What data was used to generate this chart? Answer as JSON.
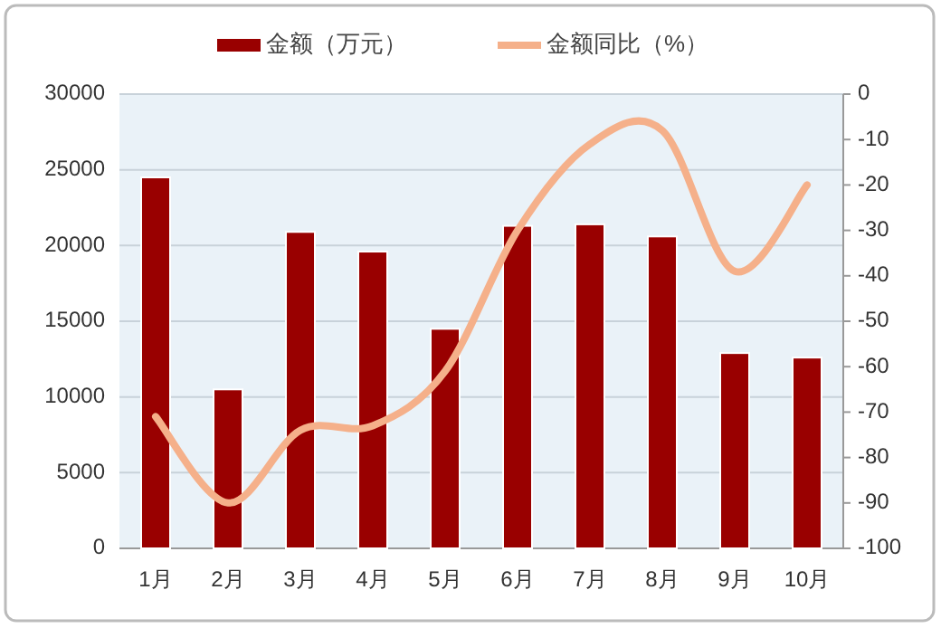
{
  "chart_data": {
    "type": "bar",
    "categories": [
      "1月",
      "2月",
      "3月",
      "4月",
      "5月",
      "6月",
      "7月",
      "8月",
      "9月",
      "10月"
    ],
    "series": [
      {
        "name": "金额（万元）",
        "color": "#990000",
        "values": [
          24500,
          10500,
          20900,
          19600,
          14500,
          21300,
          21400,
          20600,
          12900,
          12600
        ]
      },
      {
        "name": "金额同比（%）",
        "type": "line",
        "axis": "y2",
        "color": "#f5b08a",
        "values": [
          -71,
          -90,
          -74,
          -73,
          -61,
          -30,
          -11,
          -8,
          -39,
          -20
        ]
      }
    ],
    "ylim": [
      0,
      30000
    ],
    "yticks": [
      0,
      5000,
      10000,
      15000,
      20000,
      25000,
      30000
    ],
    "y2lim": [
      -100,
      0
    ],
    "y2ticks": [
      -100,
      -90,
      -80,
      -70,
      -60,
      -50,
      -40,
      -30,
      -20,
      -10,
      0
    ],
    "grid": "y",
    "legend": "top",
    "marker": "none",
    "line_style": "solid"
  }
}
